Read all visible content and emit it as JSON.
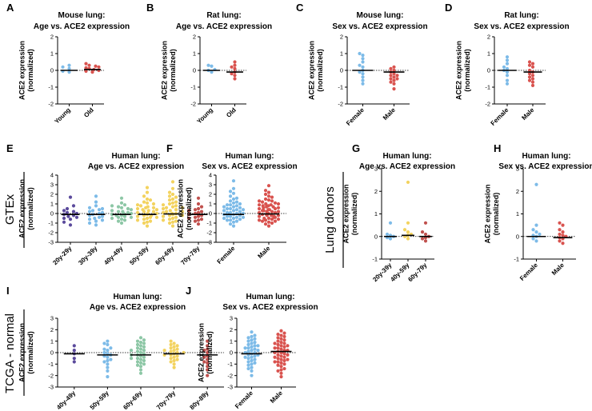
{
  "figure": {
    "y_axis_label_line1": "ACE2 expression",
    "y_axis_label_line2": "(normalized)",
    "group_gtex": "GTEx",
    "group_lung_donors": "Lung donors",
    "group_tcga": "TCGA - normal"
  },
  "colors": {
    "blue": "#7dbbe8",
    "red": "#d9534f",
    "purple": "#5b4a9c",
    "green": "#8dc7a6",
    "yellow": "#f3d35f",
    "rose": "#c0504d",
    "axis": "#000000"
  },
  "chart_data": [
    {
      "id": "A",
      "type": "scatter",
      "panel_label": "A",
      "title_line1": "Mouse lung:",
      "title_line2": "Age vs. ACE2 expression",
      "categories": [
        "Young",
        "Old"
      ],
      "ylim": [
        -2,
        2
      ],
      "yticks": [
        -2,
        -1,
        0,
        1,
        2
      ],
      "colors": [
        "blue",
        "red"
      ],
      "medians": [
        0,
        0.05
      ],
      "values": [
        [
          0.2,
          0.3,
          -0.1,
          -0.05,
          0.1
        ],
        [
          0.3,
          0.4,
          0.2,
          0.1,
          -0.05,
          0.05,
          0.25,
          0.15,
          0.0,
          -0.1
        ]
      ]
    },
    {
      "id": "B",
      "type": "scatter",
      "panel_label": "B",
      "title_line1": "Rat lung:",
      "title_line2": "Age vs. ACE2 expression",
      "categories": [
        "Young",
        "Old"
      ],
      "ylim": [
        -2,
        2
      ],
      "yticks": [
        -2,
        -1,
        0,
        1,
        2
      ],
      "colors": [
        "blue",
        "red"
      ],
      "medians": [
        0,
        -0.1
      ],
      "values": [
        [
          0.3,
          0.25,
          0.0,
          -0.1,
          0.05
        ],
        [
          0.5,
          0.3,
          0.1,
          -0.1,
          -0.3,
          -0.5,
          -0.2,
          0.2
        ]
      ]
    },
    {
      "id": "C",
      "type": "scatter",
      "panel_label": "C",
      "title_line1": "Mouse lung:",
      "title_line2": "Sex vs. ACE2 expression",
      "categories": [
        "Female",
        "Male"
      ],
      "ylim": [
        -2,
        2
      ],
      "yticks": [
        -2,
        -1,
        0,
        1,
        2
      ],
      "colors": [
        "blue",
        "red"
      ],
      "medians": [
        0,
        -0.1
      ],
      "values": [
        [
          1.0,
          0.9,
          0.7,
          0.5,
          0.2,
          0.0,
          -0.2,
          -0.4,
          -0.6,
          -0.8,
          0.3,
          -0.1
        ],
        [
          0.2,
          0.0,
          -0.1,
          -0.3,
          -0.4,
          -0.5,
          -0.6,
          -0.8,
          -1.1,
          -0.2,
          0.1,
          -0.7,
          -0.3,
          -0.5
        ]
      ]
    },
    {
      "id": "D",
      "type": "scatter",
      "panel_label": "D",
      "title_line1": "Rat lung:",
      "title_line2": "Sex vs. ACE2 expression",
      "categories": [
        "Female",
        "Male"
      ],
      "ylim": [
        -2,
        2
      ],
      "yticks": [
        -2,
        -1,
        0,
        1,
        2
      ],
      "colors": [
        "blue",
        "red"
      ],
      "medians": [
        0,
        -0.1
      ],
      "values": [
        [
          0.8,
          0.6,
          0.4,
          0.2,
          0.0,
          -0.1,
          -0.3,
          -0.6,
          -0.8,
          0.1
        ],
        [
          0.5,
          0.4,
          0.2,
          0.0,
          -0.2,
          -0.3,
          -0.5,
          -0.7,
          -0.9,
          -0.1,
          0.3,
          -0.4,
          -0.6
        ]
      ]
    },
    {
      "id": "E",
      "type": "scatter",
      "panel_label": "E",
      "title_line1": "Human lung:",
      "title_line2": "Age vs. ACE2 expression",
      "categories": [
        "20y-29y",
        "30y-39y",
        "40y-49y",
        "50y-59y",
        "60y-69y",
        "70y-79y"
      ],
      "ylim": [
        -3,
        4
      ],
      "yticks": [
        -3,
        -2,
        -1,
        0,
        1,
        2,
        3,
        4
      ],
      "colors": [
        "purple",
        "blue",
        "green",
        "yellow",
        "yellow",
        "rose"
      ],
      "medians": [
        -0.1,
        -0.1,
        -0.1,
        -0.1,
        -0.05,
        -0.1
      ],
      "values": [
        [
          1.7,
          0.8,
          0.5,
          0.2,
          0.0,
          -0.2,
          -0.4,
          -0.6,
          -0.9,
          -1.2,
          0.3,
          0.1,
          -0.1,
          -0.3,
          -0.5
        ],
        [
          1.8,
          1.2,
          0.8,
          0.5,
          0.3,
          0.1,
          0.0,
          -0.2,
          -0.4,
          -0.6,
          -0.8,
          -1.0,
          -1.2,
          0.4,
          0.2,
          -0.1,
          -0.3,
          -0.5,
          0.6,
          -0.7
        ],
        [
          1.6,
          1.1,
          0.8,
          0.6,
          0.4,
          0.2,
          0.0,
          -0.2,
          -0.4,
          -0.6,
          -0.8,
          -1.0,
          0.5,
          0.3,
          0.1,
          -0.1,
          -0.3,
          -0.5,
          -0.7,
          0.9,
          0.7,
          -0.2,
          -0.4,
          0.0,
          0.2
        ],
        [
          2.7,
          2.2,
          1.8,
          1.5,
          1.2,
          1.0,
          0.8,
          0.6,
          0.4,
          0.2,
          0.0,
          -0.2,
          -0.4,
          -0.6,
          -0.8,
          -1.0,
          -1.3,
          0.9,
          0.7,
          0.5,
          0.3,
          0.1,
          -0.1,
          -0.3,
          -0.5,
          -0.7,
          1.1,
          0.6,
          0.2,
          -0.2,
          0.4,
          0.0,
          -0.4,
          1.4,
          -0.9
        ],
        [
          3.3,
          2.6,
          2.2,
          1.8,
          1.5,
          1.2,
          1.0,
          0.8,
          0.6,
          0.4,
          0.2,
          0.0,
          -0.2,
          -0.4,
          -0.6,
          -0.8,
          -1.0,
          -1.3,
          1.1,
          0.9,
          0.7,
          0.5,
          0.3,
          0.1,
          -0.1,
          -0.3,
          -0.5,
          -0.7,
          1.4,
          0.6,
          0.2,
          -0.2,
          0.4,
          0.0,
          1.7,
          -0.9,
          2.0
        ],
        [
          1.6,
          1.0,
          0.7,
          0.4,
          0.2,
          0.0,
          -0.2,
          -0.4,
          -0.6,
          -0.8,
          -1.1,
          0.5,
          0.3,
          0.1,
          -0.1,
          -0.3,
          -0.5,
          -0.7
        ]
      ]
    },
    {
      "id": "F",
      "type": "scatter",
      "panel_label": "F",
      "title_line1": "Human lung:",
      "title_line2": "Sex vs. ACE2 expression",
      "categories": [
        "Female",
        "Male"
      ],
      "ylim": [
        -3,
        4
      ],
      "yticks": [
        -3,
        -2,
        -1,
        0,
        1,
        2,
        3,
        4
      ],
      "colors": [
        "blue",
        "red"
      ],
      "medians": [
        -0.1,
        -0.05
      ],
      "values": [
        [
          3.4,
          2.6,
          2.1,
          1.8,
          1.5,
          1.3,
          1.1,
          0.9,
          0.7,
          0.5,
          0.3,
          0.1,
          -0.1,
          -0.3,
          -0.5,
          -0.7,
          -0.9,
          -1.1,
          -1.3,
          1.2,
          1.0,
          0.8,
          0.6,
          0.4,
          0.2,
          0.0,
          -0.2,
          -0.4,
          -0.6,
          -0.8,
          0.9,
          0.5,
          0.1,
          -0.3,
          -0.7,
          0.7,
          0.3,
          -0.1,
          -0.5,
          0.4,
          0.0,
          -0.4,
          1.6,
          2.3
        ],
        [
          2.9,
          2.4,
          2.0,
          1.7,
          1.5,
          1.3,
          1.1,
          0.9,
          0.7,
          0.5,
          0.3,
          0.1,
          -0.1,
          -0.3,
          -0.5,
          -0.7,
          -0.9,
          -1.1,
          -1.3,
          1.4,
          1.2,
          1.0,
          0.8,
          0.6,
          0.4,
          0.2,
          0.0,
          -0.2,
          -0.4,
          -0.6,
          -0.8,
          -1.0,
          1.3,
          0.9,
          0.5,
          0.1,
          -0.3,
          -0.7,
          1.0,
          0.6,
          0.2,
          -0.2,
          -0.6,
          0.7,
          0.3,
          -0.1,
          -0.5,
          0.4,
          0.0,
          -0.4,
          1.8,
          2.2,
          0.8,
          0.2,
          -0.2,
          -0.8
        ]
      ]
    },
    {
      "id": "G",
      "type": "scatter",
      "panel_label": "G",
      "title_line1": "Human lung:",
      "title_line2": "Age vs. ACE2 expression",
      "categories": [
        "20y-39y",
        "40y-59y",
        "60y-79y"
      ],
      "ylim": [
        -1,
        3
      ],
      "yticks": [
        -1,
        0,
        1,
        2,
        3
      ],
      "colors": [
        "blue",
        "yellow",
        "rose"
      ],
      "medians": [
        0,
        0.05,
        0
      ],
      "values": [
        [
          0.6,
          0.1,
          0.0,
          -0.05,
          -0.1,
          0.05
        ],
        [
          2.4,
          0.6,
          0.3,
          0.1,
          0.0,
          -0.1,
          0.2,
          0.05
        ],
        [
          0.6,
          0.2,
          0.0,
          -0.1,
          -0.2,
          0.1,
          -0.05
        ]
      ]
    },
    {
      "id": "H",
      "type": "scatter",
      "panel_label": "H",
      "title_line1": "Human lung:",
      "title_line2": "Sex vs. ACE2 expression",
      "categories": [
        "Female",
        "Male"
      ],
      "ylim": [
        -1,
        3
      ],
      "yticks": [
        -1,
        0,
        1,
        2,
        3
      ],
      "colors": [
        "blue",
        "red"
      ],
      "medians": [
        0,
        -0.05
      ],
      "values": [
        [
          2.3,
          0.5,
          0.3,
          0.1,
          0.0,
          -0.1,
          -0.2,
          0.05,
          0.2
        ],
        [
          0.6,
          0.5,
          0.3,
          0.1,
          0.0,
          -0.1,
          -0.2,
          -0.3,
          0.2,
          -0.05,
          0.05
        ]
      ]
    },
    {
      "id": "I",
      "type": "scatter",
      "panel_label": "I",
      "title_line1": "Human lung:",
      "title_line2": "Age vs. ACE2 expression",
      "categories": [
        "40y-49y",
        "50y-59y",
        "60y-69y",
        "70y-79y",
        "80y-89y"
      ],
      "ylim": [
        -3,
        3
      ],
      "yticks": [
        -3,
        -2,
        -1,
        0,
        1,
        2,
        3
      ],
      "colors": [
        "purple",
        "blue",
        "green",
        "yellow",
        "rose"
      ],
      "medians": [
        -0.1,
        -0.2,
        -0.2,
        -0.1,
        -0.2
      ],
      "values": [
        [
          0.6,
          0.2,
          -0.1,
          -0.5,
          -0.8
        ],
        [
          1.0,
          0.7,
          0.4,
          0.2,
          0.0,
          -0.2,
          -0.4,
          -0.6,
          -0.8,
          -1.0,
          -1.3,
          -1.6,
          -2.1,
          0.3,
          -0.3,
          0.8,
          -0.1,
          -0.7
        ],
        [
          1.3,
          1.0,
          0.8,
          0.6,
          0.4,
          0.2,
          0.0,
          -0.2,
          -0.4,
          -0.6,
          -0.8,
          -1.0,
          -1.2,
          -1.5,
          -1.8,
          0.5,
          0.3,
          0.1,
          -0.1,
          -0.3,
          -0.5,
          -0.7,
          0.9,
          -0.9,
          0.7,
          -1.1,
          0.2,
          -0.2,
          1.1,
          -0.5
        ],
        [
          1.0,
          0.8,
          0.6,
          0.4,
          0.2,
          0.0,
          -0.2,
          -0.4,
          -0.6,
          -0.8,
          -1.0,
          -1.3,
          0.5,
          0.3,
          0.1,
          -0.1,
          -0.3,
          -0.5,
          0.7,
          -0.7,
          0.2,
          -0.2,
          0.0
        ],
        [
          1.0,
          0.6,
          0.3,
          0.0,
          -0.3,
          -0.6,
          -0.9,
          -1.2,
          -1.5,
          -2.0,
          0.2,
          -0.4,
          -0.8
        ]
      ]
    },
    {
      "id": "J",
      "type": "scatter",
      "panel_label": "J",
      "title_line1": "Human lung:",
      "title_line2": "Sex vs. ACE2 expression",
      "categories": [
        "Female",
        "Male"
      ],
      "ylim": [
        -3,
        3
      ],
      "yticks": [
        -3,
        -2,
        -1,
        0,
        1,
        2,
        3
      ],
      "colors": [
        "blue",
        "red"
      ],
      "medians": [
        -0.1,
        0.1
      ],
      "values": [
        [
          1.8,
          1.5,
          1.3,
          1.1,
          0.9,
          0.7,
          0.5,
          0.3,
          0.1,
          -0.1,
          -0.3,
          -0.5,
          -0.7,
          -0.9,
          -1.1,
          -1.3,
          -1.6,
          -2.0,
          1.0,
          0.8,
          0.6,
          0.4,
          0.2,
          0.0,
          -0.2,
          -0.4,
          -0.6,
          -0.8,
          1.2,
          0.2,
          -0.2,
          -1.0,
          0.6,
          -0.4,
          1.4,
          -1.4,
          0.0,
          0.4
        ],
        [
          1.9,
          1.6,
          1.4,
          1.2,
          1.0,
          0.8,
          0.6,
          0.4,
          0.2,
          0.0,
          -0.2,
          -0.4,
          -0.6,
          -0.8,
          -1.0,
          -1.2,
          -1.5,
          -1.8,
          -2.1,
          1.1,
          0.9,
          0.7,
          0.5,
          0.3,
          0.1,
          -0.1,
          -0.3,
          -0.5,
          -0.7,
          -0.9,
          1.3,
          0.6,
          0.2,
          -0.2,
          -0.6,
          -1.1,
          1.5,
          0.4,
          0.0,
          -0.4,
          -1.4,
          0.8,
          -0.8,
          1.7,
          -1.6
        ]
      ]
    }
  ]
}
